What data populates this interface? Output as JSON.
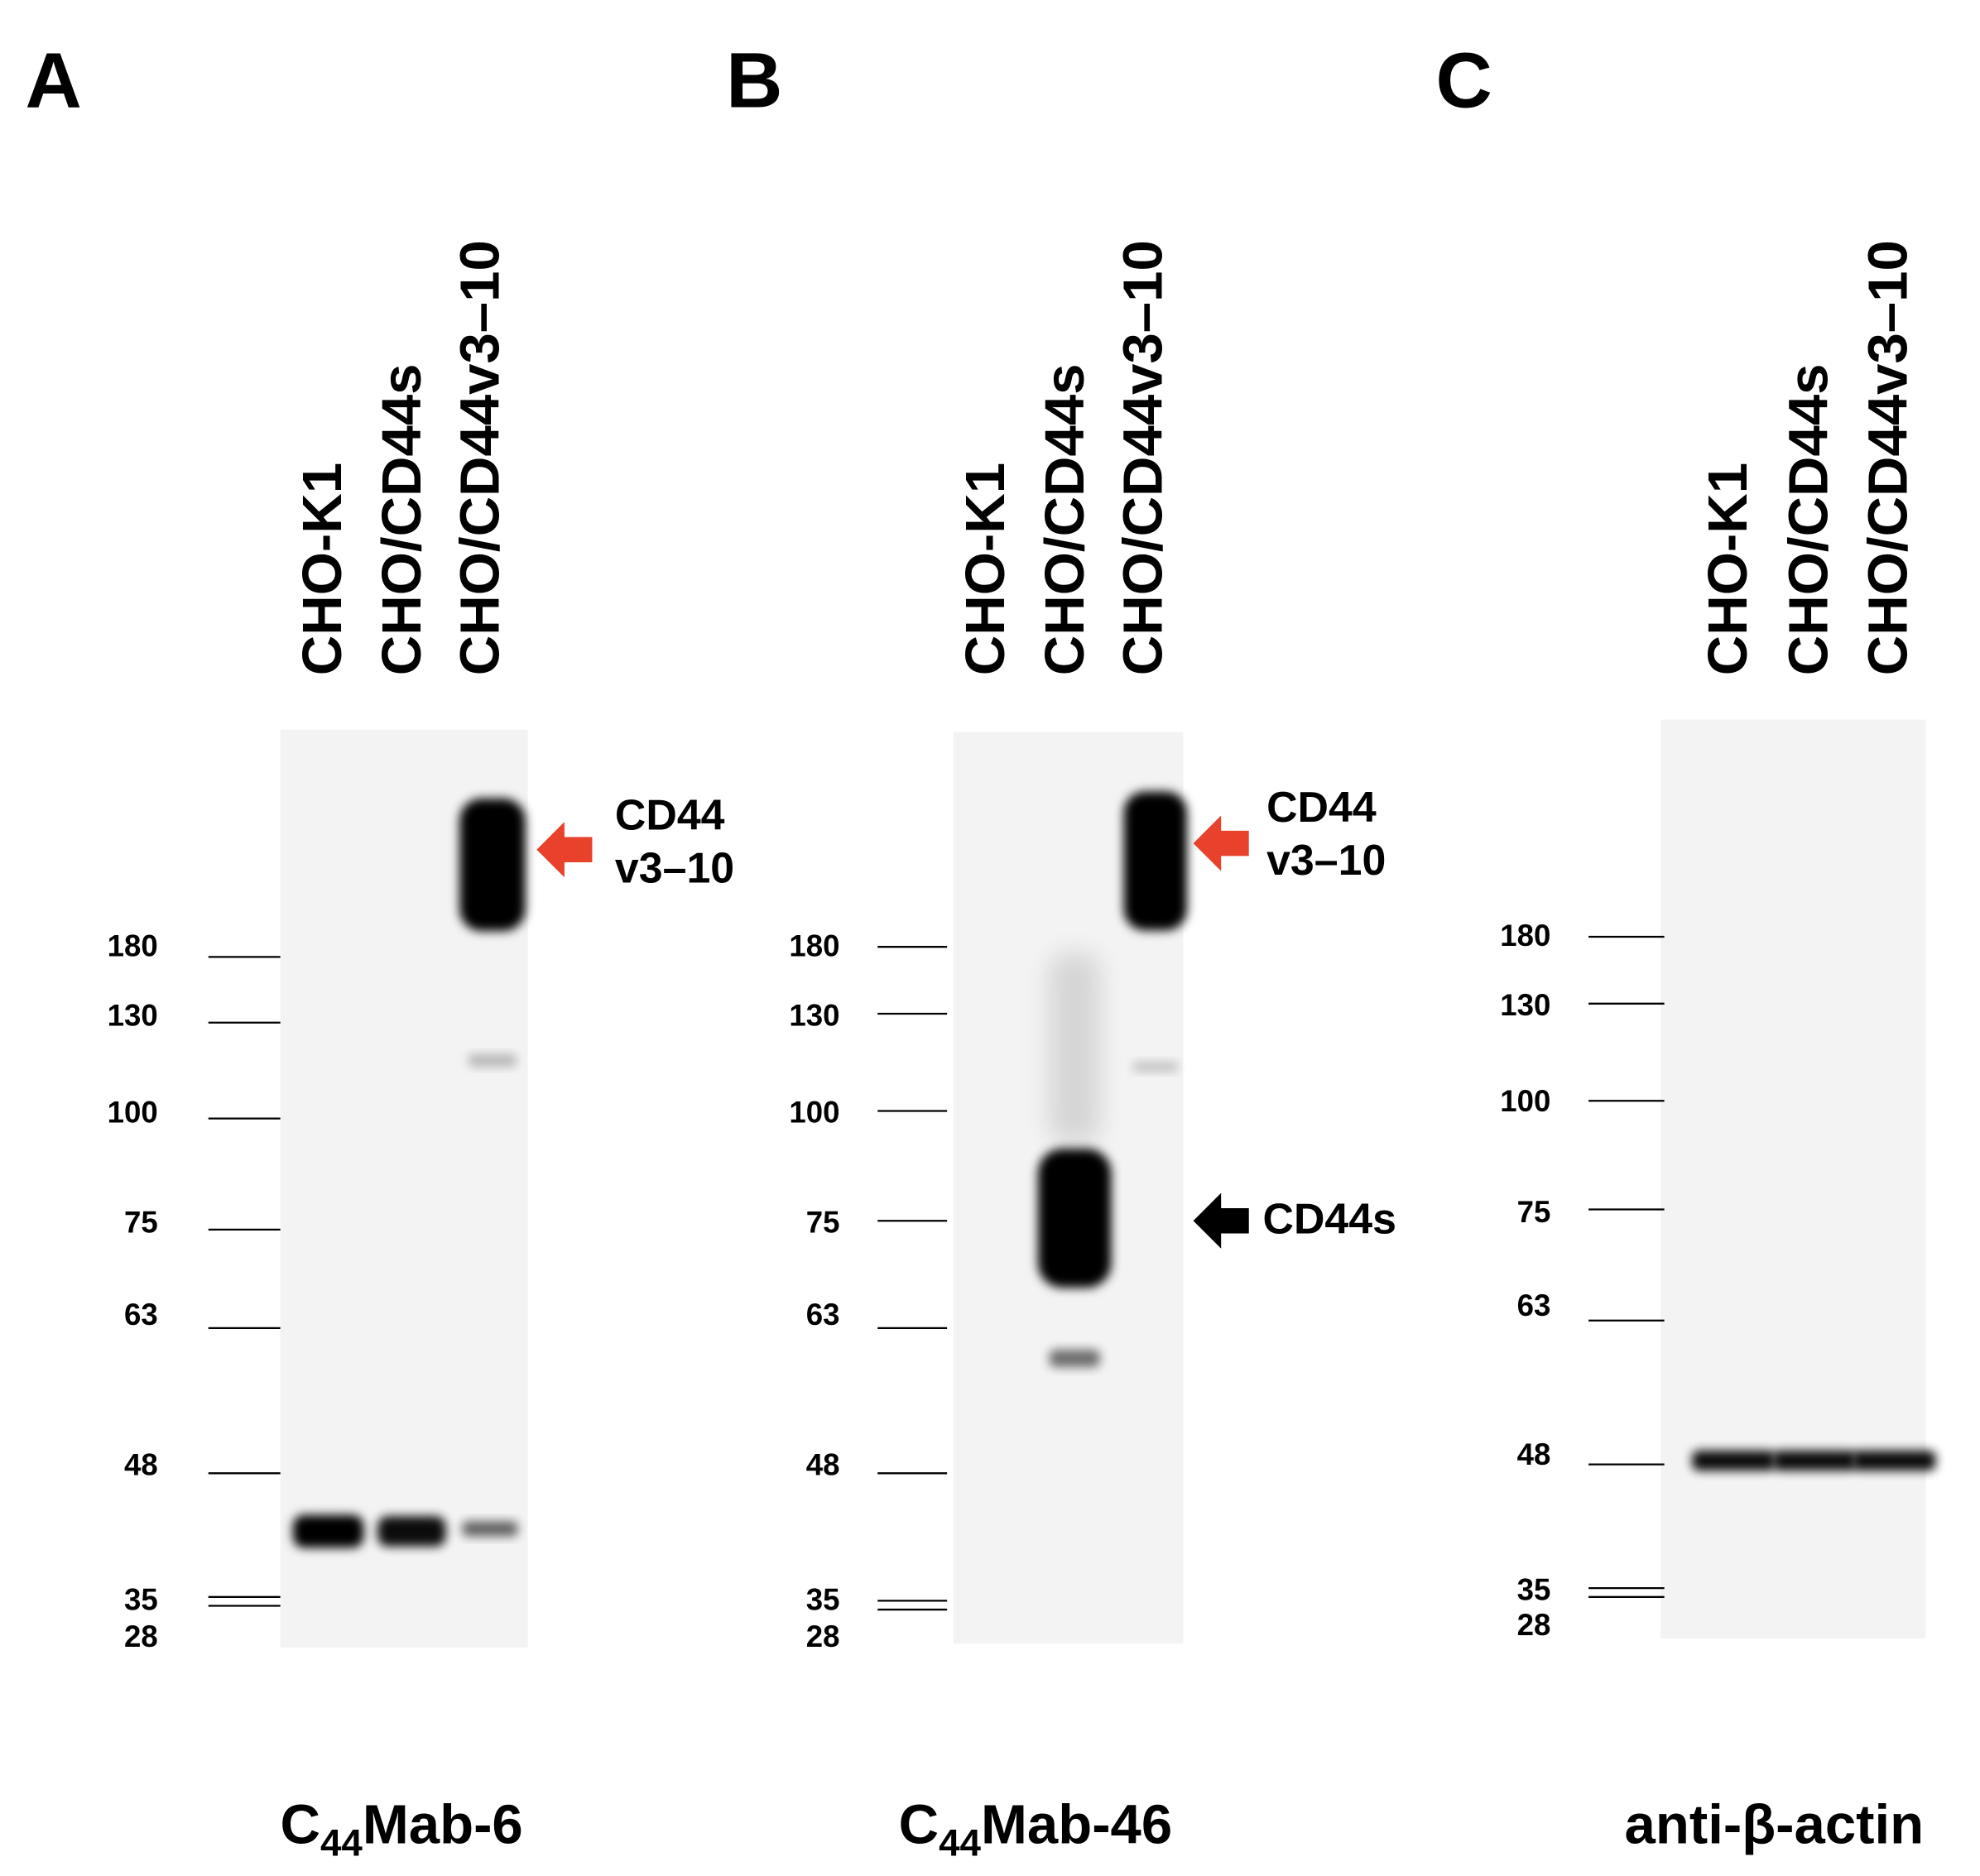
{
  "panels": [
    {
      "label": "A",
      "lanes": [
        "CHO-K1",
        "CHO/CD44s",
        "CHO/CD44v3–10"
      ],
      "markers": [
        "180",
        "130",
        "100",
        "75",
        "63",
        "48",
        "35",
        "28"
      ],
      "annotations": [
        [
          "CD44",
          "v3–10"
        ]
      ],
      "antibody": {
        "prefix": "C",
        "subscript": "44",
        "suffix": "Mab-6"
      }
    },
    {
      "label": "B",
      "lanes": [
        "CHO-K1",
        "CHO/CD44s",
        "CHO/CD44v3–10"
      ],
      "markers": [
        "180",
        "130",
        "100",
        "75",
        "63",
        "48",
        "35",
        "28"
      ],
      "annotations": [
        [
          "CD44",
          "v3–10"
        ],
        [
          "CD44s"
        ]
      ],
      "antibody": {
        "prefix": "C",
        "subscript": "44",
        "suffix": "Mab-46"
      }
    },
    {
      "label": "C",
      "lanes": [
        "CHO-K1",
        "CHO/CD44s",
        "CHO/CD44v3–10"
      ],
      "markers": [
        "180",
        "130",
        "100",
        "75",
        "63",
        "48",
        "35",
        "28"
      ],
      "annotations": [],
      "antibody": {
        "text": "anti-β-actin"
      }
    }
  ]
}
